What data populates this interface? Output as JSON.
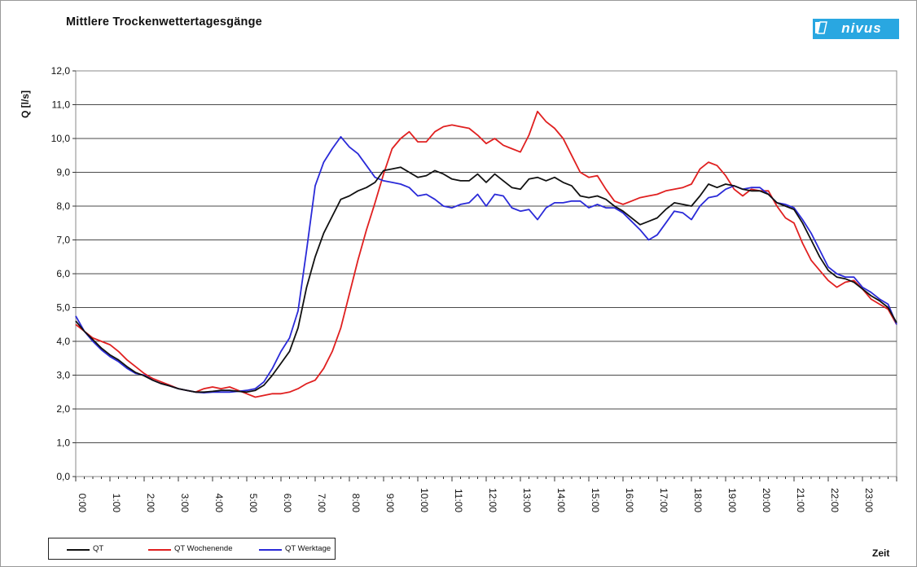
{
  "chart_data": {
    "type": "line",
    "title": "Mittlere  Trockenwettertagesgänge",
    "xlabel": "Zeit",
    "ylabel": "Q [l/s]",
    "ylim": [
      0,
      12
    ],
    "xlim": [
      0,
      24
    ],
    "yticks": [
      "0,0",
      "1,0",
      "2,0",
      "3,0",
      "4,0",
      "5,0",
      "6,0",
      "7,0",
      "8,0",
      "9,0",
      "10,0",
      "11,0",
      "12,0"
    ],
    "xticks": [
      "0:00",
      "1:00",
      "2:00",
      "3:00",
      "4:00",
      "5:00",
      "6:00",
      "7:00",
      "8:00",
      "9:00",
      "10:00",
      "11:00",
      "12:00",
      "13:00",
      "14:00",
      "15:00",
      "16:00",
      "17:00",
      "18:00",
      "19:00",
      "20:00",
      "21:00",
      "22:00",
      "23:00"
    ],
    "grid": "horizontal",
    "legend": "bottom-left",
    "x": [
      0,
      0.25,
      0.5,
      0.75,
      1,
      1.25,
      1.5,
      1.75,
      2,
      2.25,
      2.5,
      2.75,
      3,
      3.25,
      3.5,
      3.75,
      4,
      4.25,
      4.5,
      4.75,
      5,
      5.25,
      5.5,
      5.75,
      6,
      6.25,
      6.5,
      6.75,
      7,
      7.25,
      7.5,
      7.75,
      8,
      8.25,
      8.5,
      8.75,
      9,
      9.25,
      9.5,
      9.75,
      10,
      10.25,
      10.5,
      10.75,
      11,
      11.25,
      11.5,
      11.75,
      12,
      12.25,
      12.5,
      12.75,
      13,
      13.25,
      13.5,
      13.75,
      14,
      14.25,
      14.5,
      14.75,
      15,
      15.25,
      15.5,
      15.75,
      16,
      16.25,
      16.5,
      16.75,
      17,
      17.25,
      17.5,
      17.75,
      18,
      18.25,
      18.5,
      18.75,
      19,
      19.25,
      19.5,
      19.75,
      20,
      20.25,
      20.5,
      20.75,
      21,
      21.25,
      21.5,
      21.75,
      22,
      22.25,
      22.5,
      22.75,
      23,
      23.25,
      23.5,
      23.75,
      24
    ],
    "series": [
      {
        "name": "QT",
        "color": "#111111",
        "values": [
          4.6,
          4.3,
          4.05,
          3.8,
          3.6,
          3.45,
          3.25,
          3.08,
          2.98,
          2.85,
          2.75,
          2.68,
          2.6,
          2.55,
          2.5,
          2.5,
          2.52,
          2.55,
          2.55,
          2.52,
          2.5,
          2.55,
          2.7,
          3.0,
          3.35,
          3.7,
          4.4,
          5.6,
          6.5,
          7.2,
          7.7,
          8.2,
          8.3,
          8.45,
          8.55,
          8.7,
          9.05,
          9.1,
          9.15,
          9.0,
          8.85,
          8.9,
          9.05,
          8.95,
          8.8,
          8.75,
          8.75,
          8.95,
          8.7,
          8.95,
          8.75,
          8.55,
          8.5,
          8.8,
          8.85,
          8.75,
          8.85,
          8.7,
          8.6,
          8.3,
          8.25,
          8.3,
          8.2,
          8.0,
          7.85,
          7.65,
          7.45,
          7.55,
          7.65,
          7.9,
          8.1,
          8.05,
          8.0,
          8.3,
          8.65,
          8.55,
          8.65,
          8.6,
          8.5,
          8.45,
          8.45,
          8.35,
          8.1,
          8.0,
          7.9,
          7.5,
          7.0,
          6.5,
          6.1,
          5.9,
          5.85,
          5.75,
          5.55,
          5.35,
          5.2,
          5.0,
          4.55
        ]
      },
      {
        "name": "QT Wochenende",
        "color": "#e02020",
        "values": [
          4.5,
          4.3,
          4.1,
          4.0,
          3.9,
          3.7,
          3.45,
          3.25,
          3.05,
          2.9,
          2.8,
          2.7,
          2.6,
          2.55,
          2.5,
          2.6,
          2.65,
          2.6,
          2.65,
          2.55,
          2.45,
          2.35,
          2.4,
          2.45,
          2.45,
          2.5,
          2.6,
          2.75,
          2.85,
          3.2,
          3.7,
          4.4,
          5.4,
          6.4,
          7.3,
          8.1,
          8.95,
          9.7,
          10.0,
          10.2,
          9.9,
          9.9,
          10.2,
          10.35,
          10.4,
          10.35,
          10.3,
          10.1,
          9.85,
          10.0,
          9.8,
          9.7,
          9.6,
          10.1,
          10.8,
          10.5,
          10.3,
          10.0,
          9.5,
          9.0,
          8.85,
          8.9,
          8.5,
          8.15,
          8.05,
          8.15,
          8.25,
          8.3,
          8.35,
          8.45,
          8.5,
          8.55,
          8.65,
          9.1,
          9.3,
          9.2,
          8.9,
          8.5,
          8.3,
          8.5,
          8.45,
          8.45,
          8.0,
          7.65,
          7.5,
          6.9,
          6.4,
          6.1,
          5.8,
          5.6,
          5.75,
          5.8,
          5.55,
          5.25,
          5.1,
          4.95,
          4.5
        ]
      },
      {
        "name": "QT Werktage",
        "color": "#2a2ad8",
        "values": [
          4.75,
          4.3,
          4.0,
          3.75,
          3.55,
          3.4,
          3.2,
          3.05,
          3.0,
          2.85,
          2.75,
          2.68,
          2.6,
          2.55,
          2.5,
          2.48,
          2.5,
          2.5,
          2.5,
          2.52,
          2.55,
          2.6,
          2.8,
          3.2,
          3.7,
          4.1,
          4.9,
          6.7,
          8.6,
          9.3,
          9.7,
          10.05,
          9.75,
          9.55,
          9.2,
          8.85,
          8.75,
          8.7,
          8.65,
          8.55,
          8.3,
          8.35,
          8.2,
          8.0,
          7.95,
          8.05,
          8.1,
          8.35,
          8.0,
          8.35,
          8.3,
          7.95,
          7.85,
          7.9,
          7.6,
          7.95,
          8.1,
          8.1,
          8.15,
          8.15,
          7.95,
          8.05,
          7.95,
          7.95,
          7.8,
          7.55,
          7.3,
          7.0,
          7.15,
          7.5,
          7.85,
          7.8,
          7.6,
          8.0,
          8.25,
          8.3,
          8.5,
          8.6,
          8.5,
          8.55,
          8.55,
          8.35,
          8.1,
          8.05,
          7.95,
          7.6,
          7.2,
          6.7,
          6.2,
          6.0,
          5.9,
          5.9,
          5.6,
          5.45,
          5.25,
          5.1,
          4.5
        ]
      }
    ]
  },
  "logo": {
    "text": "nivus",
    "color": "#29a7e1"
  }
}
